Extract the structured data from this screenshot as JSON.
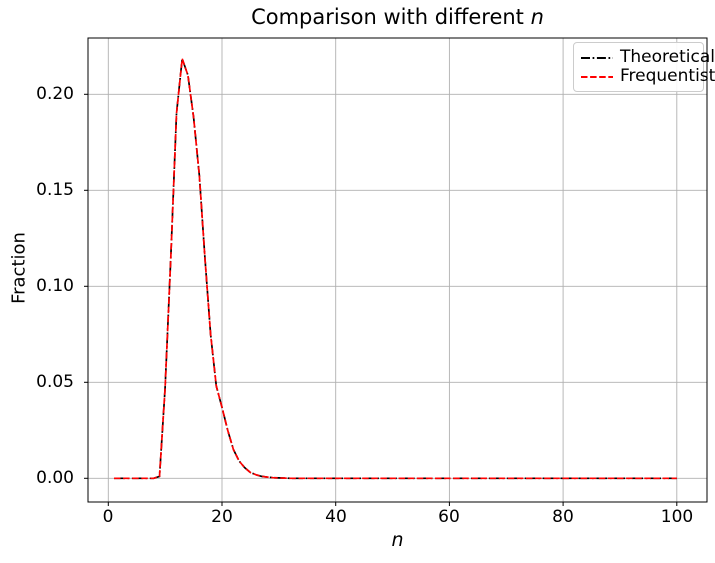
{
  "title": {
    "prefix": "Comparison with different ",
    "italic_suffix": "n"
  },
  "chart_data": {
    "type": "line",
    "title": "Comparison with different n",
    "xlabel": "n",
    "ylabel": "Fraction",
    "xlim": [
      -3.6,
      105.3
    ],
    "ylim": [
      -0.0123,
      0.2293
    ],
    "grid": true,
    "legend_position": "upper right",
    "xticks": [
      0,
      20,
      40,
      60,
      80,
      100
    ],
    "xtick_labels": [
      "0",
      "20",
      "40",
      "60",
      "80",
      "100"
    ],
    "yticks": [
      0,
      0.05,
      0.1,
      0.15,
      0.2
    ],
    "ytick_labels": [
      "0.00",
      "0.05",
      "0.10",
      "0.15",
      "0.20"
    ],
    "x": [
      1,
      2,
      3,
      4,
      5,
      6,
      7,
      8,
      9,
      10,
      11,
      12,
      13,
      14,
      15,
      16,
      17,
      18,
      19,
      20,
      21,
      22,
      23,
      24,
      25,
      26,
      27,
      28,
      29,
      30,
      31,
      32,
      33,
      34,
      35,
      36,
      37,
      38,
      39,
      40,
      41,
      42,
      43,
      44,
      45,
      46,
      47,
      48,
      49,
      50,
      51,
      52,
      53,
      54,
      55,
      56,
      57,
      58,
      59,
      60,
      61,
      62,
      63,
      64,
      65,
      66,
      67,
      68,
      69,
      70,
      71,
      72,
      73,
      74,
      75,
      76,
      77,
      78,
      79,
      80,
      81,
      82,
      83,
      84,
      85,
      86,
      87,
      88,
      89,
      90,
      91,
      92,
      93,
      94,
      95,
      96,
      97,
      98,
      99,
      100
    ],
    "series": [
      {
        "name": "Theoretical",
        "color": "#000000",
        "style": "dashdot",
        "values": [
          0,
          0,
          0,
          0,
          0,
          0,
          0,
          0,
          0.001,
          0.047,
          0.115,
          0.19,
          0.2185,
          0.21,
          0.188,
          0.158,
          0.115,
          0.075,
          0.048,
          0.037,
          0.025,
          0.015,
          0.009,
          0.0055,
          0.003,
          0.0018,
          0.001,
          0.0006,
          0.0003,
          0.0002,
          0.0001,
          0,
          0,
          0,
          0,
          0,
          0,
          0,
          0,
          0,
          0,
          0,
          0,
          0,
          0,
          0,
          0,
          0,
          0,
          0,
          0,
          0,
          0,
          0,
          0,
          0,
          0,
          0,
          0,
          0,
          0,
          0,
          0,
          0,
          0,
          0,
          0,
          0,
          0,
          0,
          0,
          0,
          0,
          0,
          0,
          0,
          0,
          0,
          0,
          0,
          0,
          0,
          0,
          0,
          0,
          0,
          0,
          0,
          0,
          0,
          0,
          0,
          0,
          0,
          0,
          0,
          0,
          0,
          0,
          0
        ]
      },
      {
        "name": "Frequentist",
        "color": "#ff0000",
        "style": "dashed",
        "values": [
          0,
          0,
          0,
          0,
          0,
          0,
          0,
          0,
          0.001,
          0.047,
          0.115,
          0.19,
          0.2185,
          0.21,
          0.188,
          0.158,
          0.115,
          0.075,
          0.048,
          0.037,
          0.025,
          0.015,
          0.009,
          0.0055,
          0.003,
          0.0018,
          0.001,
          0.0006,
          0.0003,
          0.0002,
          0.0001,
          0,
          0,
          0,
          0,
          0,
          0,
          0,
          0,
          0,
          0,
          0,
          0,
          0,
          0,
          0,
          0,
          0,
          0,
          0,
          0,
          0,
          0,
          0,
          0,
          0,
          0,
          0,
          0,
          0,
          0,
          0,
          0,
          0,
          0,
          0,
          0,
          0,
          0,
          0,
          0,
          0,
          0,
          0,
          0,
          0,
          0,
          0,
          0,
          0,
          0,
          0,
          0,
          0,
          0,
          0,
          0,
          0,
          0,
          0,
          0,
          0,
          0,
          0,
          0,
          0,
          0,
          0,
          0,
          0
        ]
      }
    ],
    "colors": {
      "background": "#ffffff",
      "grid": "#b0b0b0",
      "spine": "#000000",
      "legend_border": "#cccccc"
    }
  }
}
